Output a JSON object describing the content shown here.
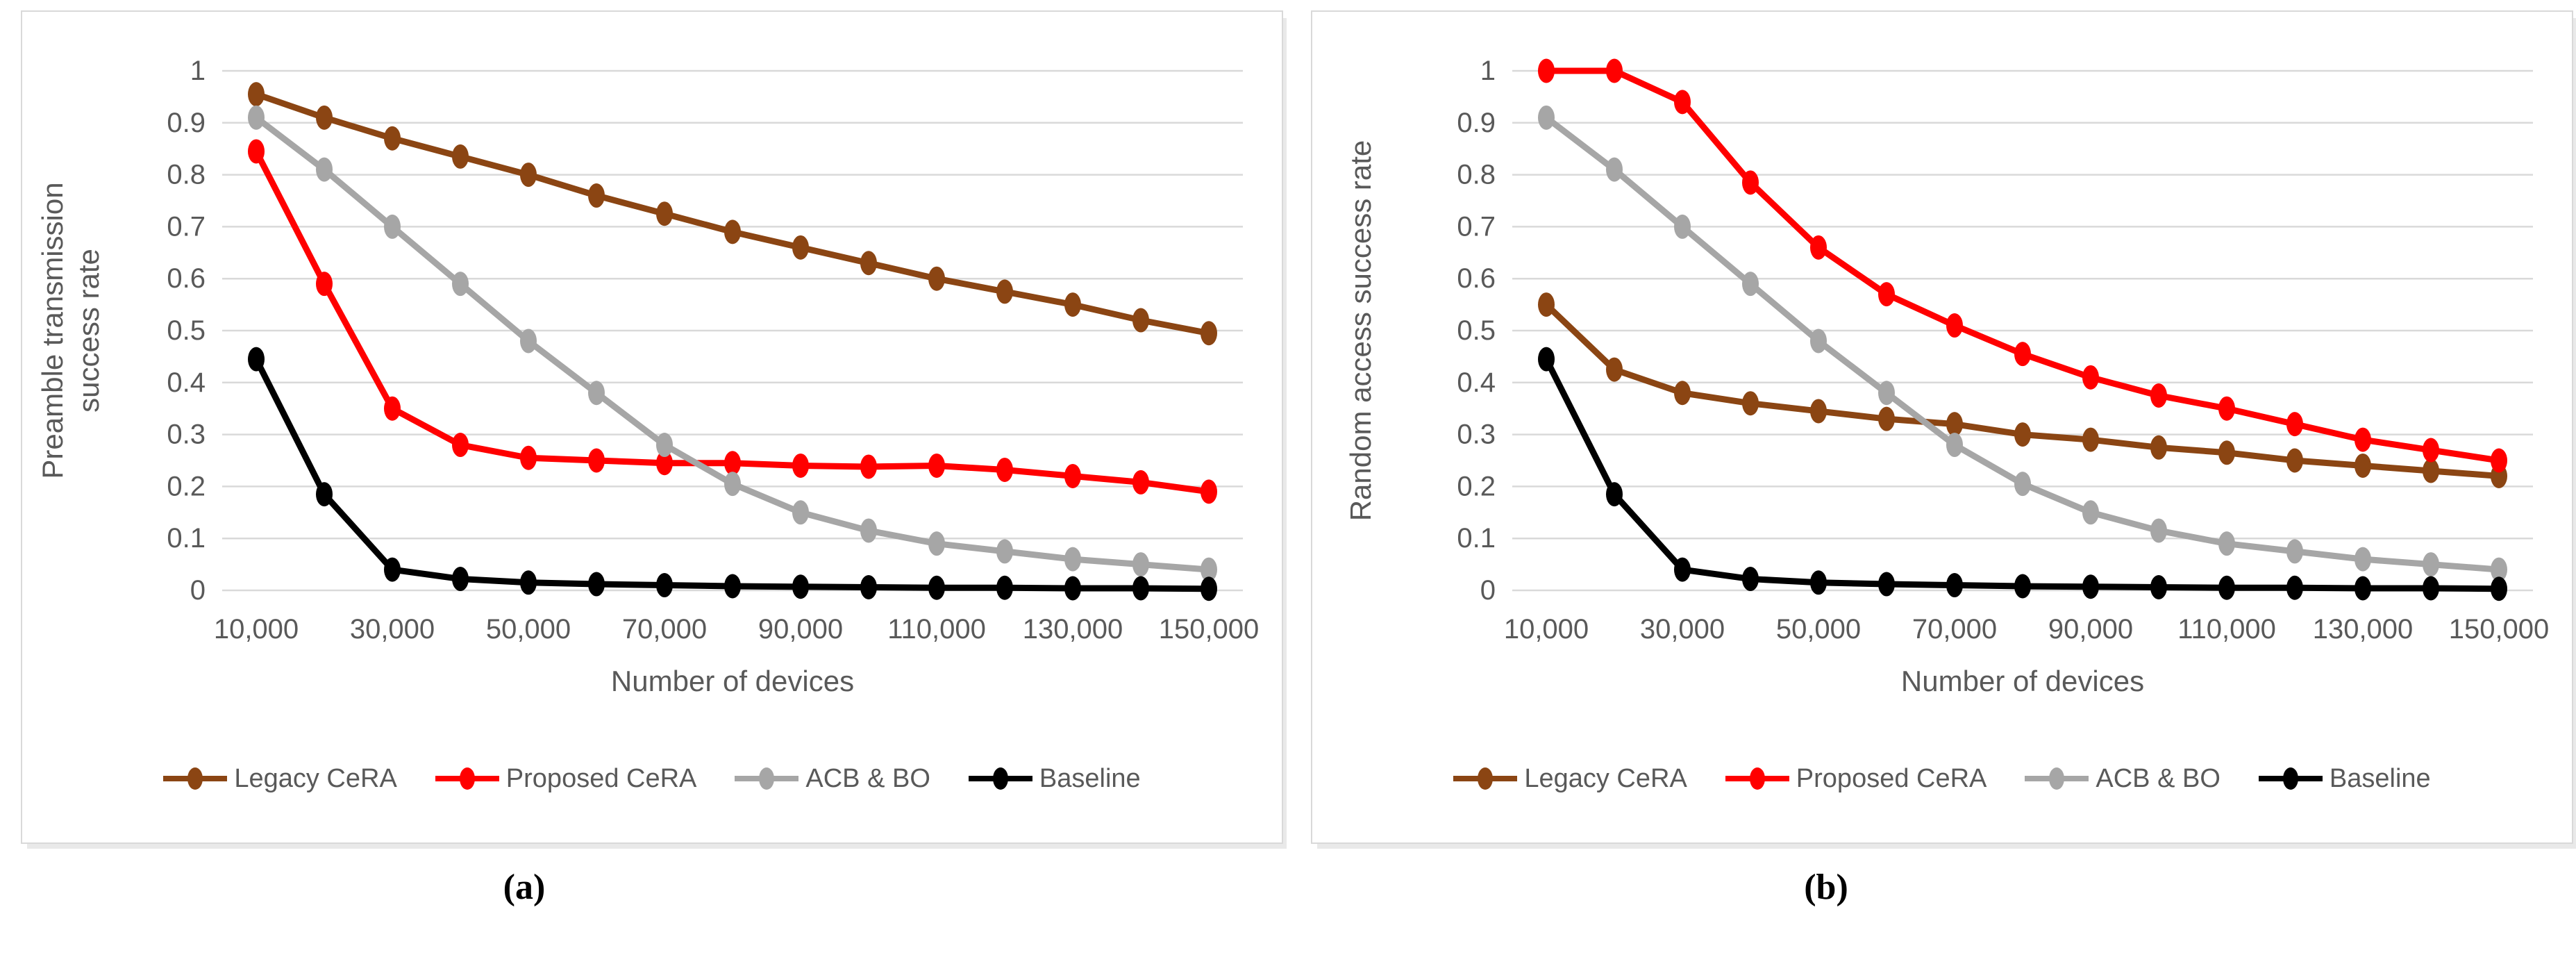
{
  "figure": {
    "captions": {
      "a": "(a)",
      "b": "(b)"
    },
    "colors": {
      "legacy_cera": "#8B4513",
      "proposed_cera": "#FF0000",
      "acb_bo": "#A6A6A6",
      "baseline": "#000000",
      "gridline": "#D9D9D9",
      "axis_text": "#595959",
      "panel_border": "#D9D9D9"
    },
    "y_axis": {
      "tick_labels": [
        "0",
        "0.1",
        "0.2",
        "0.3",
        "0.4",
        "0.5",
        "0.6",
        "0.7",
        "0.8",
        "0.9",
        "1"
      ]
    },
    "x_axis": {
      "title": "Number of devices",
      "tick_labels": [
        "10,000",
        "30,000",
        "50,000",
        "70,000",
        "90,000",
        "110,000",
        "130,000",
        "150,000"
      ]
    }
  },
  "chart_data": [
    {
      "type": "line",
      "panel": "a",
      "xlabel": "Number of devices",
      "ylabel": "Preamble transmission success rate",
      "ylabel_lines": [
        "Preamble transmission",
        "success rate"
      ],
      "x": [
        10000,
        20000,
        30000,
        40000,
        50000,
        60000,
        70000,
        80000,
        90000,
        100000,
        110000,
        120000,
        130000,
        140000,
        150000
      ],
      "x_tick_labels": [
        "10,000",
        "30,000",
        "50,000",
        "70,000",
        "90,000",
        "110,000",
        "130,000",
        "150,000"
      ],
      "ylim": [
        0,
        1
      ],
      "ytick_step": 0.1,
      "grid": "horizontal",
      "legend_position": "bottom",
      "series": [
        {
          "name": "Legacy CeRA",
          "color": "#8B4513",
          "values": [
            0.955,
            0.91,
            0.87,
            0.835,
            0.8,
            0.76,
            0.725,
            0.69,
            0.66,
            0.63,
            0.6,
            0.575,
            0.55,
            0.52,
            0.495
          ]
        },
        {
          "name": "Proposed CeRA",
          "color": "#FF0000",
          "values": [
            0.845,
            0.59,
            0.35,
            0.28,
            0.255,
            0.25,
            0.245,
            0.245,
            0.24,
            0.238,
            0.24,
            0.232,
            0.22,
            0.208,
            0.19
          ]
        },
        {
          "name": "ACB & BO",
          "color": "#A6A6A6",
          "values": [
            0.91,
            0.81,
            0.7,
            0.59,
            0.48,
            0.38,
            0.28,
            0.205,
            0.15,
            0.115,
            0.09,
            0.075,
            0.06,
            0.05,
            0.04
          ]
        },
        {
          "name": "Baseline",
          "color": "#000000",
          "values": [
            0.445,
            0.185,
            0.04,
            0.022,
            0.015,
            0.012,
            0.01,
            0.008,
            0.007,
            0.006,
            0.005,
            0.005,
            0.004,
            0.004,
            0.003
          ]
        }
      ]
    },
    {
      "type": "line",
      "panel": "b",
      "xlabel": "Number of devices",
      "ylabel": "Random access success rate",
      "ylabel_lines": [
        "Random access success rate"
      ],
      "x": [
        10000,
        20000,
        30000,
        40000,
        50000,
        60000,
        70000,
        80000,
        90000,
        100000,
        110000,
        120000,
        130000,
        140000,
        150000
      ],
      "x_tick_labels": [
        "10,000",
        "30,000",
        "50,000",
        "70,000",
        "90,000",
        "110,000",
        "130,000",
        "150,000"
      ],
      "ylim": [
        0,
        1
      ],
      "ytick_step": 0.1,
      "grid": "horizontal",
      "legend_position": "bottom",
      "series": [
        {
          "name": "Legacy CeRA",
          "color": "#8B4513",
          "values": [
            0.55,
            0.425,
            0.38,
            0.36,
            0.345,
            0.33,
            0.32,
            0.3,
            0.29,
            0.275,
            0.265,
            0.25,
            0.24,
            0.23,
            0.22
          ]
        },
        {
          "name": "Proposed CeRA",
          "color": "#FF0000",
          "values": [
            1.0,
            1.0,
            0.94,
            0.785,
            0.66,
            0.57,
            0.51,
            0.455,
            0.41,
            0.375,
            0.35,
            0.32,
            0.29,
            0.27,
            0.25
          ]
        },
        {
          "name": "ACB & BO",
          "color": "#A6A6A6",
          "values": [
            0.91,
            0.81,
            0.7,
            0.59,
            0.48,
            0.38,
            0.28,
            0.205,
            0.15,
            0.115,
            0.09,
            0.075,
            0.06,
            0.05,
            0.04
          ]
        },
        {
          "name": "Baseline",
          "color": "#000000",
          "values": [
            0.445,
            0.185,
            0.04,
            0.022,
            0.015,
            0.012,
            0.01,
            0.008,
            0.007,
            0.006,
            0.005,
            0.005,
            0.004,
            0.004,
            0.003
          ]
        }
      ]
    }
  ]
}
